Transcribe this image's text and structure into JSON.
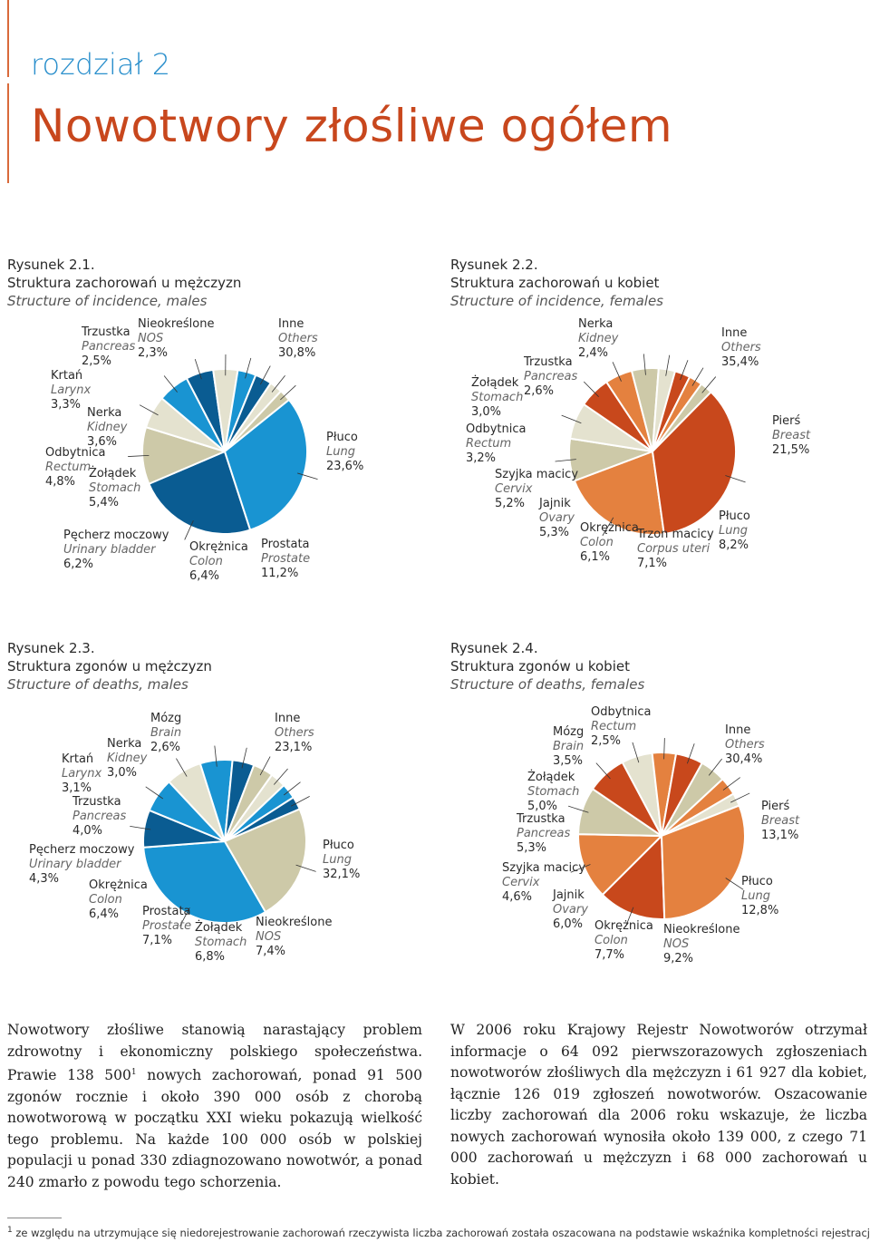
{
  "chapter": "rozdział 2",
  "title": "Nowotwory złośliwe ogółem",
  "figures": [
    {
      "id": "Rysunek 2.1.",
      "title_pl": "Struktura zachorowań u mężczyzn",
      "title_en": "Structure of incidence, males"
    },
    {
      "id": "Rysunek 2.2.",
      "title_pl": "Struktura zachorowań u kobiet",
      "title_en": "Structure of incidence, females"
    },
    {
      "id": "Rysunek 2.3.",
      "title_pl": "Struktura zgonów u mężczyzn",
      "title_en": "Structure of deaths, males"
    },
    {
      "id": "Rysunek 2.4.",
      "title_pl": "Struktura zgonów u kobiet",
      "title_en": "Structure of deaths, females"
    }
  ],
  "chart_data": [
    {
      "type": "pie",
      "title": "Struktura zachorowań u mężczyzn",
      "slices": [
        {
          "pl": "Płuco",
          "en": "Lung",
          "value": 23.6,
          "pct": "23,6%",
          "color": "#0a5c92"
        },
        {
          "pl": "Prostata",
          "en": "Prostate",
          "value": 11.2,
          "pct": "11,2%",
          "color": "#cdc9a8"
        },
        {
          "pl": "Okrężnica",
          "en": "Colon",
          "value": 6.4,
          "pct": "6,4%",
          "color": "#e4e2cf"
        },
        {
          "pl": "Pęcherz moczowy",
          "en": "Urinary bladder",
          "value": 6.2,
          "pct": "6,2%",
          "color": "#1994d2"
        },
        {
          "pl": "Żołądek",
          "en": "Stomach",
          "value": 5.4,
          "pct": "5,4%",
          "color": "#0a5c92"
        },
        {
          "pl": "Odbytnica",
          "en": "Rectum",
          "value": 4.8,
          "pct": "4,8%",
          "color": "#e4e2cf"
        },
        {
          "pl": "Nerka",
          "en": "Kidney",
          "value": 3.6,
          "pct": "3,6%",
          "color": "#1994d2"
        },
        {
          "pl": "Krtań",
          "en": "Larynx",
          "value": 3.3,
          "pct": "3,3%",
          "color": "#0a5c92"
        },
        {
          "pl": "Trzustka",
          "en": "Pancreas",
          "value": 2.5,
          "pct": "2,5%",
          "color": "#e4e2cf"
        },
        {
          "pl": "Nieokreślone",
          "en": "NOS",
          "value": 2.3,
          "pct": "2,3%",
          "color": "#cdc9a8"
        },
        {
          "pl": "Inne",
          "en": "Others",
          "value": 30.8,
          "pct": "30,8%",
          "color": "#1994d2"
        }
      ]
    },
    {
      "type": "pie",
      "title": "Struktura zachorowań u kobiet",
      "slices": [
        {
          "pl": "Pierś",
          "en": "Breast",
          "value": 21.5,
          "pct": "21,5%",
          "color": "#e4813f"
        },
        {
          "pl": "Płuco",
          "en": "Lung",
          "value": 8.2,
          "pct": "8,2%",
          "color": "#cdc9a8"
        },
        {
          "pl": "Trzon macicy",
          "en": "Corpus uteri",
          "value": 7.1,
          "pct": "7,1%",
          "color": "#e4e2cf"
        },
        {
          "pl": "Okrężnica",
          "en": "Colon",
          "value": 6.1,
          "pct": "6,1%",
          "color": "#c8481c"
        },
        {
          "pl": "Jajnik",
          "en": "Ovary",
          "value": 5.3,
          "pct": "5,3%",
          "color": "#e4813f"
        },
        {
          "pl": "Szyjka macicy",
          "en": "Cervix",
          "value": 5.2,
          "pct": "5,2%",
          "color": "#cdc9a8"
        },
        {
          "pl": "Odbytnica",
          "en": "Rectum",
          "value": 3.2,
          "pct": "3,2%",
          "color": "#e4e2cf"
        },
        {
          "pl": "Żołądek",
          "en": "Stomach",
          "value": 3.0,
          "pct": "3,0%",
          "color": "#c8481c"
        },
        {
          "pl": "Trzustka",
          "en": "Pancreas",
          "value": 2.6,
          "pct": "2,6%",
          "color": "#e4813f"
        },
        {
          "pl": "Nerka",
          "en": "Kidney",
          "value": 2.4,
          "pct": "2,4%",
          "color": "#cdc9a8"
        },
        {
          "pl": "Inne",
          "en": "Others",
          "value": 35.4,
          "pct": "35,4%",
          "color": "#c8481c"
        }
      ]
    },
    {
      "type": "pie",
      "title": "Struktura zgonów u mężczyzn",
      "slices": [
        {
          "pl": "Płuco",
          "en": "Lung",
          "value": 32.1,
          "pct": "32,1%",
          "color": "#1994d2"
        },
        {
          "pl": "Nieokreślone",
          "en": "NOS",
          "value": 7.4,
          "pct": "7,4%",
          "color": "#0a5c92"
        },
        {
          "pl": "Żołądek",
          "en": "Stomach",
          "value": 6.8,
          "pct": "6,8%",
          "color": "#1994d2"
        },
        {
          "pl": "Prostata",
          "en": "Prostate",
          "value": 7.1,
          "pct": "7,1%",
          "color": "#e4e2cf"
        },
        {
          "pl": "Okrężnica",
          "en": "Colon",
          "value": 6.4,
          "pct": "6,4%",
          "color": "#1994d2"
        },
        {
          "pl": "Pęcherz moczowy",
          "en": "Urinary bladder",
          "value": 4.3,
          "pct": "4,3%",
          "color": "#0a5c92"
        },
        {
          "pl": "Trzustka",
          "en": "Pancreas",
          "value": 4.0,
          "pct": "4,0%",
          "color": "#cdc9a8"
        },
        {
          "pl": "Krtań",
          "en": "Larynx",
          "value": 3.1,
          "pct": "3,1%",
          "color": "#e4e2cf"
        },
        {
          "pl": "Nerka",
          "en": "Kidney",
          "value": 3.0,
          "pct": "3,0%",
          "color": "#1994d2"
        },
        {
          "pl": "Mózg",
          "en": "Brain",
          "value": 2.6,
          "pct": "2,6%",
          "color": "#0a5c92"
        },
        {
          "pl": "Inne",
          "en": "Others",
          "value": 23.1,
          "pct": "23,1%",
          "color": "#cdc9a8"
        }
      ]
    },
    {
      "type": "pie",
      "title": "Struktura zgonów u kobiet",
      "slices": [
        {
          "pl": "Pierś",
          "en": "Breast",
          "value": 13.1,
          "pct": "13,1%",
          "color": "#c8481c"
        },
        {
          "pl": "Płuco",
          "en": "Lung",
          "value": 12.8,
          "pct": "12,8%",
          "color": "#e4813f"
        },
        {
          "pl": "Nieokreślone",
          "en": "NOS",
          "value": 9.2,
          "pct": "9,2%",
          "color": "#cdc9a8"
        },
        {
          "pl": "Okrężnica",
          "en": "Colon",
          "value": 7.7,
          "pct": "7,7%",
          "color": "#c8481c"
        },
        {
          "pl": "Jajnik",
          "en": "Ovary",
          "value": 6.0,
          "pct": "6,0%",
          "color": "#e4e2cf"
        },
        {
          "pl": "Szyjka macicy",
          "en": "Cervix",
          "value": 4.6,
          "pct": "4,6%",
          "color": "#e4813f"
        },
        {
          "pl": "Trzustka",
          "en": "Pancreas",
          "value": 5.3,
          "pct": "5,3%",
          "color": "#c8481c"
        },
        {
          "pl": "Żołądek",
          "en": "Stomach",
          "value": 5.0,
          "pct": "5,0%",
          "color": "#cdc9a8"
        },
        {
          "pl": "Mózg",
          "en": "Brain",
          "value": 3.5,
          "pct": "3,5%",
          "color": "#e4813f"
        },
        {
          "pl": "Odbytnica",
          "en": "Rectum",
          "value": 2.5,
          "pct": "2,5%",
          "color": "#e4e2cf"
        },
        {
          "pl": "Inne",
          "en": "Others",
          "value": 30.4,
          "pct": "30,4%",
          "color": "#e4813f"
        }
      ]
    }
  ],
  "text": {
    "left_a": "Nowotwory złośliwe stanowią narastający problem zdrowotny i ekonomiczny polskiego społeczeństwa. Prawie 138 500",
    "left_sup": "1",
    "left_b": " nowych zachorowań, ponad 91 500 zgonów rocznie i około 390 000 osób z chorobą nowotworową w początku XXI wieku pokazują wielkość tego problemu. Na każde 100 000 osób w polskiej populacji u ponad 330 zdiagnozowano nowotwór, a ponad 240 zmarło z powodu tego schorzenia.",
    "right": "W 2006 roku Krajowy Rejestr Nowotworów otrzymał informacje o 64 092 pierwszorazowych zgłoszeniach nowotworów złośliwych dla mężczyzn i 61 927 dla kobiet, łącznie 126 019 zgłoszeń nowotworów. Oszacowanie liczby zachorowań dla 2006 roku wskazuje, że liczba nowych zachorowań wynosiła około 139 000, z czego 71 000 zachorowań u mężczyzn i 68 000 zachorowań u kobiet."
  },
  "footnote": {
    "mark": "1",
    "text": " ze względu na utrzymujące się niedorejestrowanie zachorowań rzeczywista liczba zachorowań została oszacowana na podstawie wskaźnika kompletności rejestracji"
  }
}
